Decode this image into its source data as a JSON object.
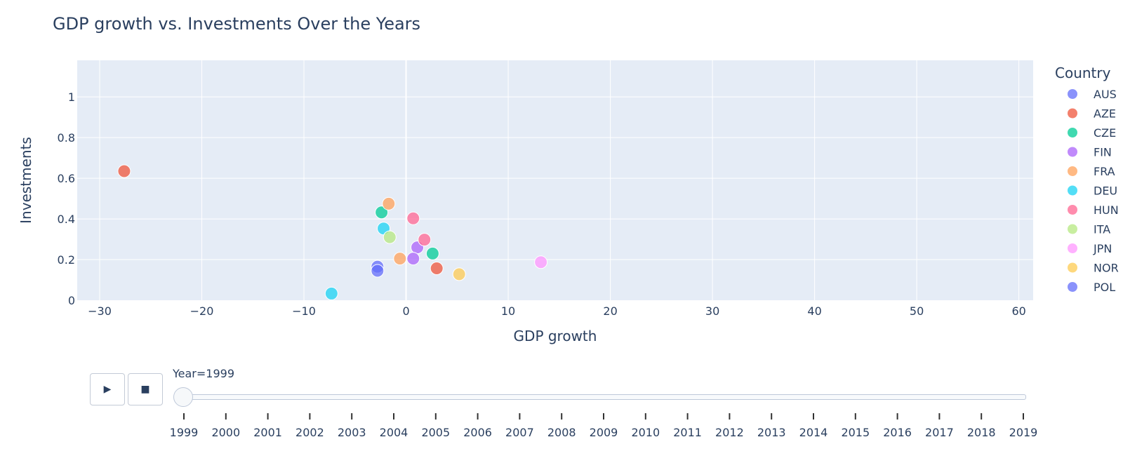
{
  "chart_data": {
    "type": "scatter",
    "title": "GDP growth vs. Investments Over the Years",
    "xlabel": "GDP growth",
    "ylabel": "Investments",
    "xlim": [
      -32.2,
      61.4
    ],
    "ylim": [
      0,
      1.18
    ],
    "xticks": [
      -30,
      -20,
      -10,
      0,
      10,
      20,
      30,
      40,
      50,
      60
    ],
    "yticks": [
      0,
      0.2,
      0.4,
      0.6,
      0.8,
      1
    ],
    "grid": true,
    "legend_title": "Country",
    "legend_position": "right",
    "series": [
      {
        "name": "AUS",
        "color": "#636efa",
        "points": [
          {
            "x": -2.8,
            "y": 0.165
          }
        ]
      },
      {
        "name": "AZE",
        "color": "#ef553b",
        "points": [
          {
            "x": -27.6,
            "y": 0.635
          },
          {
            "x": 3.0,
            "y": 0.157
          }
        ]
      },
      {
        "name": "CZE",
        "color": "#00cc96",
        "points": [
          {
            "x": -2.4,
            "y": 0.432
          },
          {
            "x": 2.6,
            "y": 0.23
          }
        ]
      },
      {
        "name": "FIN",
        "color": "#ab63fa",
        "points": [
          {
            "x": 1.1,
            "y": 0.26
          },
          {
            "x": 0.7,
            "y": 0.205
          }
        ]
      },
      {
        "name": "FRA",
        "color": "#ffa15a",
        "points": [
          {
            "x": -1.7,
            "y": 0.475
          },
          {
            "x": -0.6,
            "y": 0.205
          }
        ]
      },
      {
        "name": "DEU",
        "color": "#19d3f3",
        "points": [
          {
            "x": -2.2,
            "y": 0.353
          },
          {
            "x": -7.3,
            "y": 0.033
          }
        ]
      },
      {
        "name": "HUN",
        "color": "#ff6692",
        "points": [
          {
            "x": 0.7,
            "y": 0.403
          },
          {
            "x": 1.8,
            "y": 0.298
          }
        ]
      },
      {
        "name": "ITA",
        "color": "#b6e880",
        "points": [
          {
            "x": -1.6,
            "y": 0.31
          }
        ]
      },
      {
        "name": "JPN",
        "color": "#ff97ff",
        "points": [
          {
            "x": 13.2,
            "y": 0.187
          }
        ]
      },
      {
        "name": "NOR",
        "color": "#fecb52",
        "points": [
          {
            "x": 5.2,
            "y": 0.128
          }
        ]
      },
      {
        "name": "POL",
        "color": "#636efa",
        "points": [
          {
            "x": -2.8,
            "y": 0.145
          }
        ]
      }
    ]
  },
  "animation": {
    "year_label": "Year=1999",
    "selected_year": "1999",
    "play_icon": "▶",
    "stop_icon": "■",
    "years": [
      "1999",
      "2000",
      "2001",
      "2002",
      "2003",
      "2004",
      "2005",
      "2006",
      "2007",
      "2008",
      "2009",
      "2010",
      "2011",
      "2012",
      "2013",
      "2014",
      "2015",
      "2016",
      "2017",
      "2018",
      "2019"
    ]
  }
}
